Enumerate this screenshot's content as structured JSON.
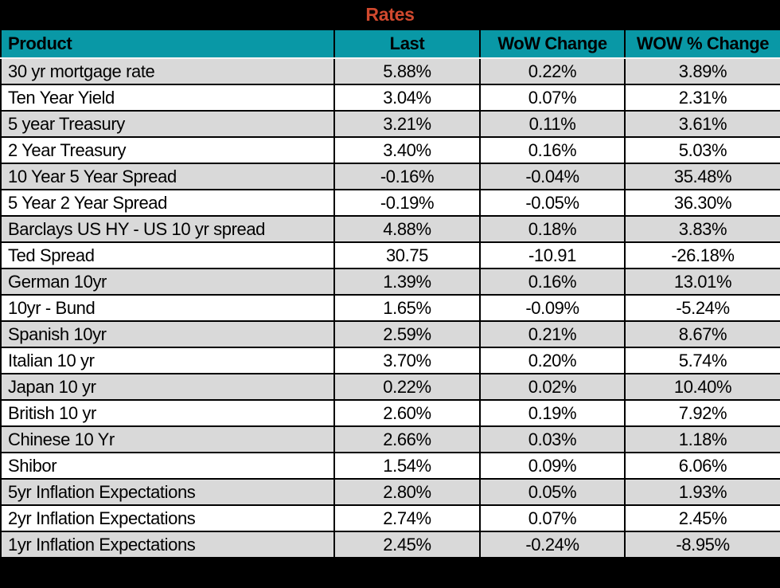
{
  "colors": {
    "title_color": "#d1492e",
    "header_bg": "#0998a6",
    "row_alt_bg": "#d9d9d9",
    "row_bg": "#ffffff",
    "border": "#000000",
    "title_bar_bg": "#000000"
  },
  "chart_data": {
    "type": "table",
    "title": "Rates",
    "columns": [
      "Product",
      "Last",
      "WoW Change",
      "WOW % Change"
    ],
    "rows": [
      [
        "30 yr mortgage rate",
        "5.88%",
        "0.22%",
        "3.89%"
      ],
      [
        "Ten Year Yield",
        "3.04%",
        "0.07%",
        "2.31%"
      ],
      [
        "5 year Treasury",
        "3.21%",
        "0.11%",
        "3.61%"
      ],
      [
        "2 Year Treasury",
        "3.40%",
        "0.16%",
        "5.03%"
      ],
      [
        "10 Year 5 Year Spread",
        "-0.16%",
        "-0.04%",
        "35.48%"
      ],
      [
        "5 Year 2 Year Spread",
        "-0.19%",
        "-0.05%",
        "36.30%"
      ],
      [
        "Barclays US HY - US 10 yr spread",
        "4.88%",
        "0.18%",
        "3.83%"
      ],
      [
        "Ted Spread",
        "30.75",
        "-10.91",
        "-26.18%"
      ],
      [
        "German 10yr",
        "1.39%",
        "0.16%",
        "13.01%"
      ],
      [
        "10yr - Bund",
        "1.65%",
        "-0.09%",
        "-5.24%"
      ],
      [
        "Spanish 10yr",
        "2.59%",
        "0.21%",
        "8.67%"
      ],
      [
        "Italian 10 yr",
        "3.70%",
        "0.20%",
        "5.74%"
      ],
      [
        "Japan 10 yr",
        "0.22%",
        "0.02%",
        "10.40%"
      ],
      [
        "British 10 yr",
        "2.60%",
        "0.19%",
        "7.92%"
      ],
      [
        "Chinese 10 Yr",
        "2.66%",
        "0.03%",
        "1.18%"
      ],
      [
        "Shibor",
        "1.54%",
        "0.09%",
        "6.06%"
      ],
      [
        "5yr Inflation Expectations",
        "2.80%",
        "0.05%",
        "1.93%"
      ],
      [
        "2yr Inflation Expectations",
        "2.74%",
        "0.07%",
        "2.45%"
      ],
      [
        "1yr Inflation Expectations",
        "2.45%",
        "-0.24%",
        "-8.95%"
      ]
    ]
  }
}
